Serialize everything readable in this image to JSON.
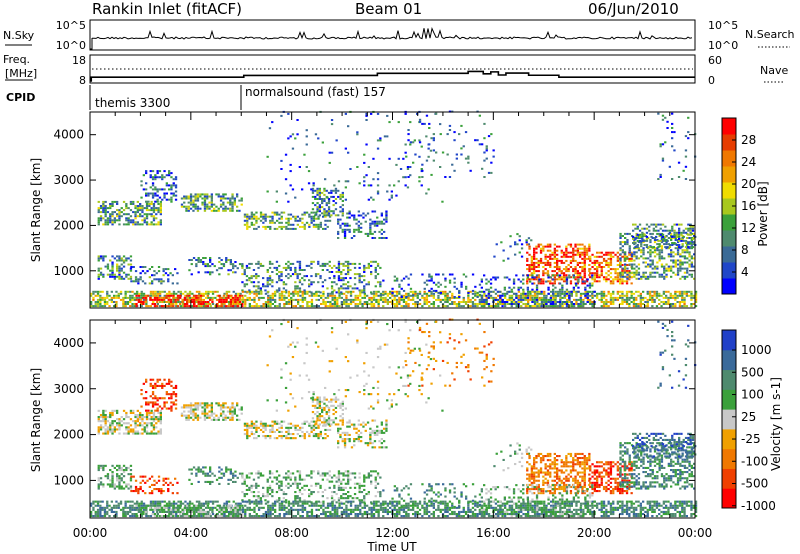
{
  "header": {
    "radar_title": "Rankin Inlet (fitACF)",
    "beam": "Beam 01",
    "date": "06/Jun/2010"
  },
  "noise_panel": {
    "left_label": "N.Sky",
    "left_ticks": [
      "10^5",
      "10^0"
    ],
    "right_ticks": [
      "10^5",
      "10^0"
    ],
    "right_label": "N.Search"
  },
  "freq_panel": {
    "left_label_line1": "Freq.",
    "left_label_line2": "[MHz]",
    "left_ticks": [
      "18",
      "8"
    ],
    "right_ticks": [
      "60",
      "0"
    ],
    "right_label": "Nave"
  },
  "cpid": {
    "label": "CPID",
    "segments": [
      {
        "name": "themis 3300",
        "start_hour": 0
      },
      {
        "name": "normalsound (fast) 157",
        "start_hour": 6
      }
    ]
  },
  "x_axis": {
    "label": "Time UT",
    "ticks": [
      "00:00",
      "04:00",
      "08:00",
      "12:00",
      "16:00",
      "20:00",
      "00:00"
    ]
  },
  "power_panel": {
    "ylabel": "Slant Range [km]",
    "yticks": [
      "4000",
      "3000",
      "2000",
      "1000"
    ],
    "colorbar_label": "Power [dB]",
    "colorbar_ticks": [
      "28",
      "24",
      "20",
      "16",
      "12",
      "8",
      "4"
    ],
    "colors": [
      "#0000ff",
      "#2046c8",
      "#3a6a96",
      "#4e8a6e",
      "#3aa03a",
      "#a8c81e",
      "#f0dc00",
      "#f0a000",
      "#f07800",
      "#e63c00",
      "#ff0000"
    ]
  },
  "velocity_panel": {
    "ylabel": "Slant Range [km]",
    "yticks": [
      "4000",
      "3000",
      "2000",
      "1000"
    ],
    "colorbar_label": "Velocity [m s-1]",
    "colorbar_ticks": [
      "1000",
      "500",
      "100",
      "25",
      "-25",
      "-100",
      "-500",
      "-1000"
    ],
    "colors": [
      "#2040c8",
      "#3a6a9a",
      "#4e8a6e",
      "#3aa03a",
      "#c8c8c8",
      "#f0a000",
      "#f07800",
      "#f04000",
      "#ff0000"
    ]
  },
  "chart_data": [
    {
      "type": "line",
      "title": "Rankin Inlet (fitACF)",
      "xlabel": "",
      "ylabel": "N.Sky",
      "x_range_hours": [
        0,
        24
      ],
      "y_scale": "log",
      "ylim": [
        1,
        100000
      ]
    },
    {
      "type": "line",
      "xlabel": "",
      "ylabel": "Freq. [MHz]",
      "ylim": [
        8,
        18
      ],
      "series": [
        {
          "x": [
            0,
            0.05,
            6.0,
            6.1,
            11.3,
            11.4,
            14.8,
            15.0,
            15.6,
            15.9,
            16.2,
            16.5,
            17.2,
            17.4,
            18.3,
            18.6,
            24
          ],
          "values": [
            8.0,
            9.6,
            9.6,
            10.3,
            10.3,
            11.2,
            11.2,
            12.0,
            11.0,
            11.8,
            10.5,
            11.3,
            11.3,
            10.4,
            10.4,
            9.6,
            9.6
          ]
        }
      ]
    },
    {
      "type": "heatmap",
      "title": "Power",
      "xlabel": "Time UT",
      "ylabel": "Slant Range [km]",
      "x_range_hours": [
        0,
        24
      ],
      "ylim": [
        180,
        4500
      ],
      "zlim": [
        0,
        30
      ],
      "z_label": "Power [dB]"
    },
    {
      "type": "heatmap",
      "title": "Velocity",
      "xlabel": "Time UT",
      "ylabel": "Slant Range [km]",
      "x_range_hours": [
        0,
        24
      ],
      "ylim": [
        180,
        4500
      ],
      "zlim": [
        -1000,
        1000
      ],
      "z_label": "Velocity [m s-1]"
    }
  ]
}
